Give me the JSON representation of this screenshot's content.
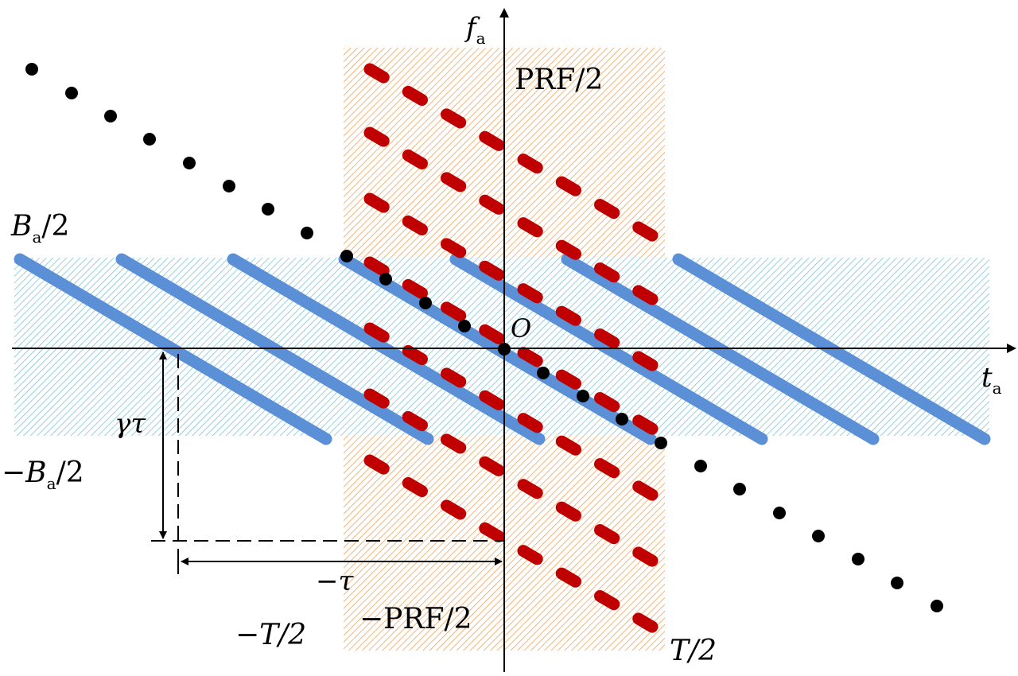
{
  "labels": {
    "f_axis_main": "f",
    "f_axis_sub": "a",
    "t_axis_main": "t",
    "t_axis_sub": "a",
    "origin": "O",
    "prf_top": "PRF/2",
    "prf_bottom": "−PRF/2",
    "ba_top_main": "B",
    "ba_top_sub": "a",
    "ba_top_rest": "/2",
    "ba_bottom_pre": "−B",
    "ba_bottom_sub": "a",
    "ba_bottom_rest": "/2",
    "gamma_tau": "γτ",
    "neg_tau": "−τ",
    "neg_T_half": "−T/2",
    "T_half": "T/2"
  },
  "colors": {
    "blue_band_hatch": "#7fc4d6",
    "orange_band_hatch": "#f2a35a",
    "blue_lines": "#5b8fd6",
    "red_dashes": "#c00000",
    "dots": "#000000",
    "axes": "#000000"
  }
}
